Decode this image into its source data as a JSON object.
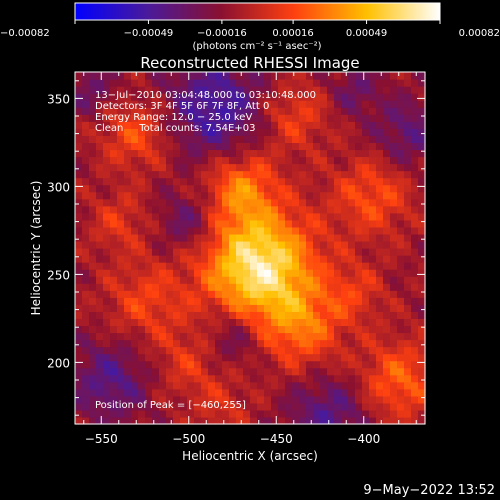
{
  "chart_data": {
    "type": "heatmap",
    "title": "Reconstructed RHESSI Image",
    "xlabel": "Heliocentric X (arcsec)",
    "ylabel": "Heliocentric Y (arcsec)",
    "xlim": [
      -565,
      -365
    ],
    "ylim": [
      165,
      365
    ],
    "x_ticks": [
      -550,
      -500,
      -450,
      -400
    ],
    "y_ticks": [
      200,
      250,
      300,
      350
    ],
    "x_tick_labels": [
      "−550",
      "−500",
      "−450",
      "−400"
    ],
    "y_tick_labels": [
      "200",
      "250",
      "300",
      "350"
    ],
    "colorbar": {
      "label": "(photons cm⁻² s⁻¹ asec⁻²)",
      "min": -0.00082,
      "max": 0.00082,
      "ticks": [
        -0.00082,
        -0.00049,
        -0.00016,
        0.00016,
        0.00049,
        0.00082
      ],
      "tick_labels": [
        "−0.00082",
        "−0.00049",
        "−0.00016",
        "0.00016",
        "0.00049",
        "0.00082"
      ],
      "colors": [
        "#0000ff",
        "#4a1a9a",
        "#8a1030",
        "#ff4010",
        "#ffc000",
        "#ffffff"
      ]
    },
    "info_lines": [
      "13−Jul−2010 03:04:48.000 to 03:10:48.000",
      "Detectors: 3F 4F 5F 6F 7F 8F, Att 0",
      "Energy Range: 12.0 − 25.0 keV",
      "Clean     Total counts: 7.54E+03"
    ],
    "peak_label": "Position of Peak = [−460,255]",
    "peak": [
      -460,
      255
    ],
    "sources": [
      {
        "x": -460,
        "y": 255,
        "sigma": 22,
        "amp": 0.00082
      },
      {
        "x": -470,
        "y": 300,
        "sigma": 14,
        "amp": 0.0004
      },
      {
        "x": -435,
        "y": 220,
        "sigma": 16,
        "amp": 0.00035
      },
      {
        "x": -530,
        "y": 330,
        "sigma": 14,
        "amp": 0.0003
      },
      {
        "x": -395,
        "y": 295,
        "sigma": 16,
        "amp": 0.0003
      },
      {
        "x": -380,
        "y": 190,
        "sigma": 16,
        "amp": 0.00035
      },
      {
        "x": -525,
        "y": 235,
        "sigma": 16,
        "amp": 0.00025
      },
      {
        "x": -540,
        "y": 280,
        "sigma": 12,
        "amp": 0.0002
      },
      {
        "x": -500,
        "y": 200,
        "sigma": 14,
        "amp": 0.0002
      },
      {
        "x": -440,
        "y": 340,
        "sigma": 14,
        "amp": 0.00025
      },
      {
        "x": -405,
        "y": 240,
        "sigma": 12,
        "amp": 0.0002
      },
      {
        "x": -480,
        "y": 175,
        "sigma": 12,
        "amp": 0.00015
      }
    ],
    "negatives": [
      {
        "x": -485,
        "y": 345,
        "sigma": 20,
        "amp": -0.0004
      },
      {
        "x": -500,
        "y": 280,
        "sigma": 12,
        "amp": -0.00025
      },
      {
        "x": -545,
        "y": 190,
        "sigma": 16,
        "amp": -0.0003
      },
      {
        "x": -475,
        "y": 215,
        "sigma": 12,
        "amp": -0.00025
      },
      {
        "x": -420,
        "y": 170,
        "sigma": 16,
        "amp": -0.0003
      },
      {
        "x": -375,
        "y": 330,
        "sigma": 14,
        "amp": -0.00025
      },
      {
        "x": -405,
        "y": 355,
        "sigma": 10,
        "amp": -0.0002
      },
      {
        "x": -555,
        "y": 355,
        "sigma": 10,
        "amp": -0.0002
      }
    ],
    "background": -0.00012,
    "grid": false
  },
  "timestamp": "9−May−2022 13:52"
}
